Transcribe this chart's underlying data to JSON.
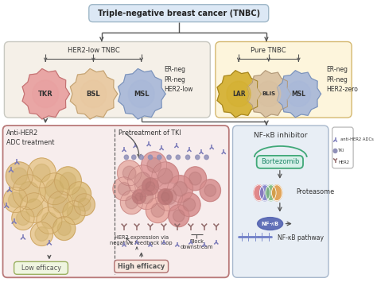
{
  "title": "Triple-negative breast cancer (TNBC)",
  "title_box_fc": "#dce8f5",
  "title_box_ec": "#a0b8c8",
  "left_panel_fc": "#f7eded",
  "left_panel_ec": "#b87878",
  "left_top_fc": "#f5f0e8",
  "left_top_ec": "#c8c8c0",
  "right_top_fc": "#fdf5dc",
  "right_top_ec": "#d4b870",
  "nfkb_fc": "#e8eef5",
  "nfkb_ec": "#a8b8cc",
  "legend_fc": "#ffffff",
  "legend_ec": "#b0b0b0",
  "bg": "#ffffff",
  "her2low_label": "HER2-low TNBC",
  "pure_tnbc_label": "Pure TNBC",
  "er_neg_left": "ER-neg\nPR-neg\nHER2-low",
  "er_neg_right": "ER-neg\nPR-neg\nHER2-zero",
  "cell_tkr_fc": "#e8a0a0",
  "cell_tkr_ec": "#c07070",
  "cell_bsl_fc": "#e8c8a0",
  "cell_bsl_ec": "#c0a070",
  "cell_msl_fc": "#a8b8d8",
  "cell_msl_ec": "#7890b8",
  "cell_lar_fc": "#d4b030",
  "cell_lar_ec": "#a08020",
  "cell_blis_fc": "#d8c0a0",
  "cell_blis_ec": "#b09878",
  "cell_msl2_fc": "#a8b8d8",
  "cell_msl2_ec": "#7890b8",
  "adc_color": "#7878b8",
  "her2_color": "#906868",
  "tki_color": "#9090b8",
  "line_color": "#555555",
  "anti_her2_text": "Anti-HER2\nADC treatment",
  "pretreatment_text": "Pretreatment of TKI",
  "low_eff_text": "Low efficacy",
  "high_eff_text": "High efficacy",
  "her2_expr_text": "HER2 expression via\nnegative feedback loop",
  "block_text": "Block\ndownstream",
  "nfkb_inh_text": "NF-κB inhibitor",
  "bort_text": "Bortezomib",
  "prot_text": "Proteasome",
  "nfkb_path_text": "NF-κB pathway",
  "leg_adc": "anti-HER2 ADCs",
  "leg_tki": "TKI",
  "leg_her2": "HER2",
  "bort_fc": "#d8f0ea",
  "bort_ec": "#40a878",
  "nfkb_oval_fc": "#5060b0",
  "barrel_colors": [
    "#e07878",
    "#7878c8",
    "#78b878",
    "#e09840"
  ]
}
